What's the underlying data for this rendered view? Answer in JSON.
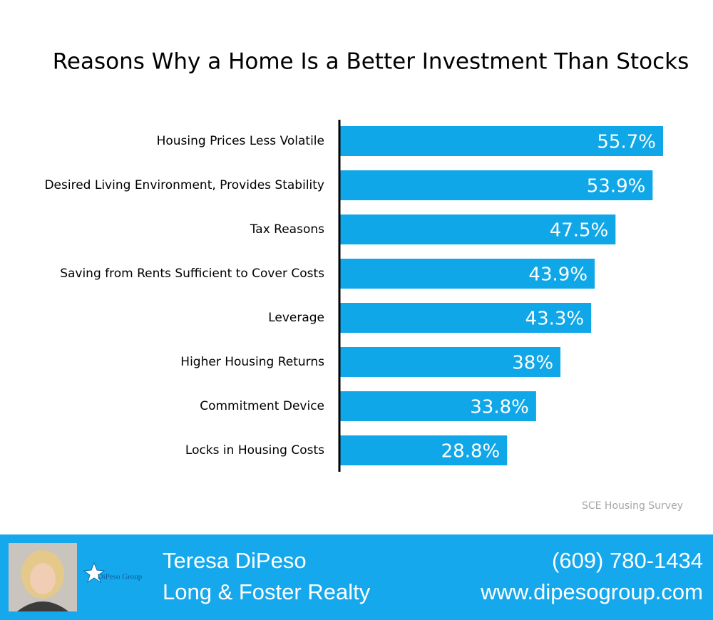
{
  "chart_data": {
    "type": "bar",
    "orientation": "horizontal",
    "title": "Reasons Why a Home Is a Better Investment Than Stocks",
    "categories": [
      "Housing Prices Less Volatile",
      "Desired Living Environment, Provides Stability",
      "Tax Reasons",
      "Saving from Rents Sufficient to Cover Costs",
      "Leverage",
      "Higher Housing Returns",
      "Commitment Device",
      "Locks in Housing Costs"
    ],
    "values": [
      55.7,
      53.9,
      47.5,
      43.9,
      43.3,
      38,
      33.8,
      28.8
    ],
    "value_labels": [
      "55.7%",
      "53.9%",
      "47.5%",
      "43.9%",
      "43.3%",
      "38%",
      "33.8%",
      "28.8%"
    ],
    "color": "#10a7e8",
    "source": "SCE Housing Survey"
  },
  "footer": {
    "logo_text": "DiPeso Group",
    "name": "Teresa DiPeso",
    "company": "Long & Foster Realty",
    "phone": "(609) 780-1434",
    "website": "www.dipesogroup.com"
  }
}
